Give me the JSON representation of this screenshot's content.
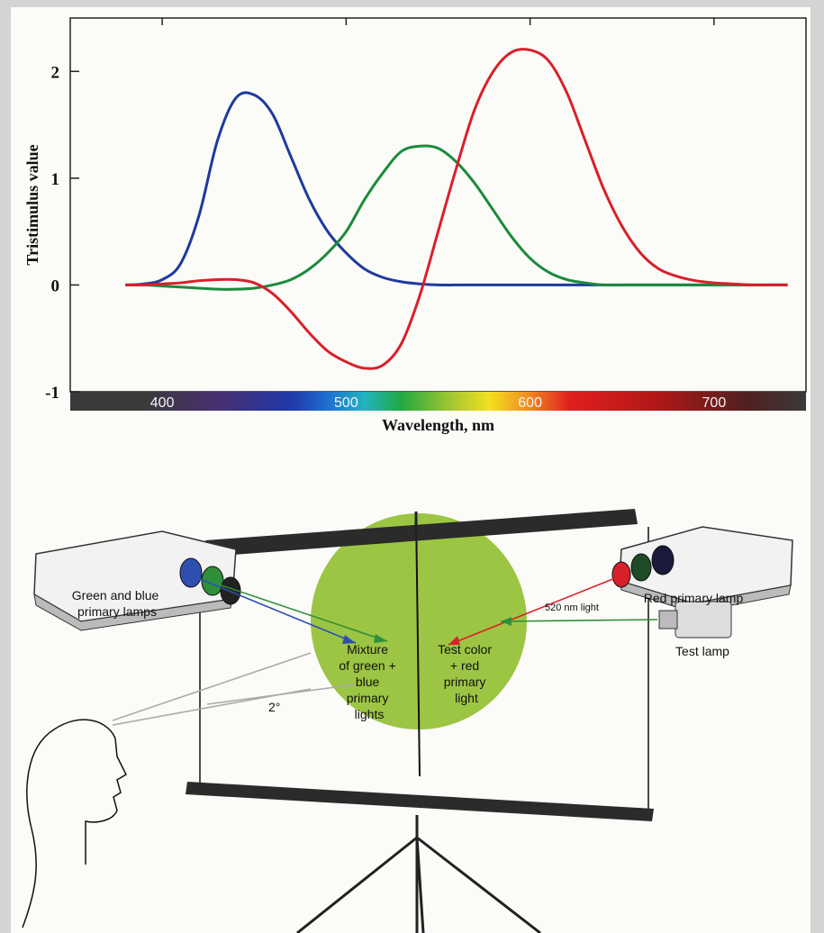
{
  "chart_data": {
    "type": "line",
    "ylabel": "Tristimulus value",
    "xlabel": "Wavelength, nm",
    "xlim": [
      350,
      750
    ],
    "ylim": [
      -1,
      2.5
    ],
    "xticks": [
      400,
      500,
      600,
      700
    ],
    "yticks": [
      -1,
      0,
      1,
      2
    ],
    "grid": false,
    "x": [
      380,
      390,
      400,
      410,
      420,
      430,
      440,
      450,
      460,
      470,
      480,
      490,
      500,
      510,
      520,
      530,
      540,
      550,
      560,
      570,
      580,
      590,
      600,
      610,
      620,
      630,
      640,
      650,
      660,
      670,
      680,
      690,
      700,
      710,
      720,
      730,
      740
    ],
    "series": [
      {
        "color": "#1f3a9e",
        "values": [
          0,
          0.01,
          0.05,
          0.2,
          0.65,
          1.35,
          1.75,
          1.78,
          1.6,
          1.2,
          0.8,
          0.5,
          0.3,
          0.15,
          0.07,
          0.03,
          0.01,
          0,
          0,
          0,
          0,
          0,
          0,
          0,
          0,
          0,
          0,
          0,
          0,
          0,
          0,
          0,
          0,
          0,
          0,
          0,
          0
        ]
      },
      {
        "color": "#1c8a3c",
        "values": [
          0,
          0,
          -0.01,
          -0.02,
          -0.03,
          -0.04,
          -0.04,
          -0.03,
          0,
          0.05,
          0.15,
          0.3,
          0.5,
          0.8,
          1.05,
          1.25,
          1.3,
          1.28,
          1.15,
          0.95,
          0.7,
          0.45,
          0.25,
          0.12,
          0.05,
          0.02,
          0,
          0,
          0,
          0,
          0,
          0,
          0,
          0,
          0,
          0,
          0
        ]
      },
      {
        "color": "#d8202a",
        "values": [
          0,
          0,
          0.01,
          0.02,
          0.04,
          0.05,
          0.05,
          0.02,
          -0.08,
          -0.25,
          -0.45,
          -0.62,
          -0.72,
          -0.78,
          -0.75,
          -0.55,
          -0.1,
          0.5,
          1.1,
          1.65,
          2.0,
          2.18,
          2.2,
          2.1,
          1.8,
          1.35,
          0.9,
          0.55,
          0.3,
          0.15,
          0.08,
          0.04,
          0.02,
          0.01,
          0,
          0,
          0
        ]
      }
    ]
  },
  "diagram": {
    "left_lamps": [
      "Green and blue",
      "primary lamps"
    ],
    "right_lamp": "Red primary lamp",
    "test_light": "520 nm light",
    "test_lamp": "Test lamp",
    "mixture": [
      "Mixture",
      "of green +",
      "blue",
      "primary",
      "lights"
    ],
    "test_color": [
      "Test color",
      "+ red",
      "primary",
      "light"
    ],
    "angle": "2°"
  }
}
